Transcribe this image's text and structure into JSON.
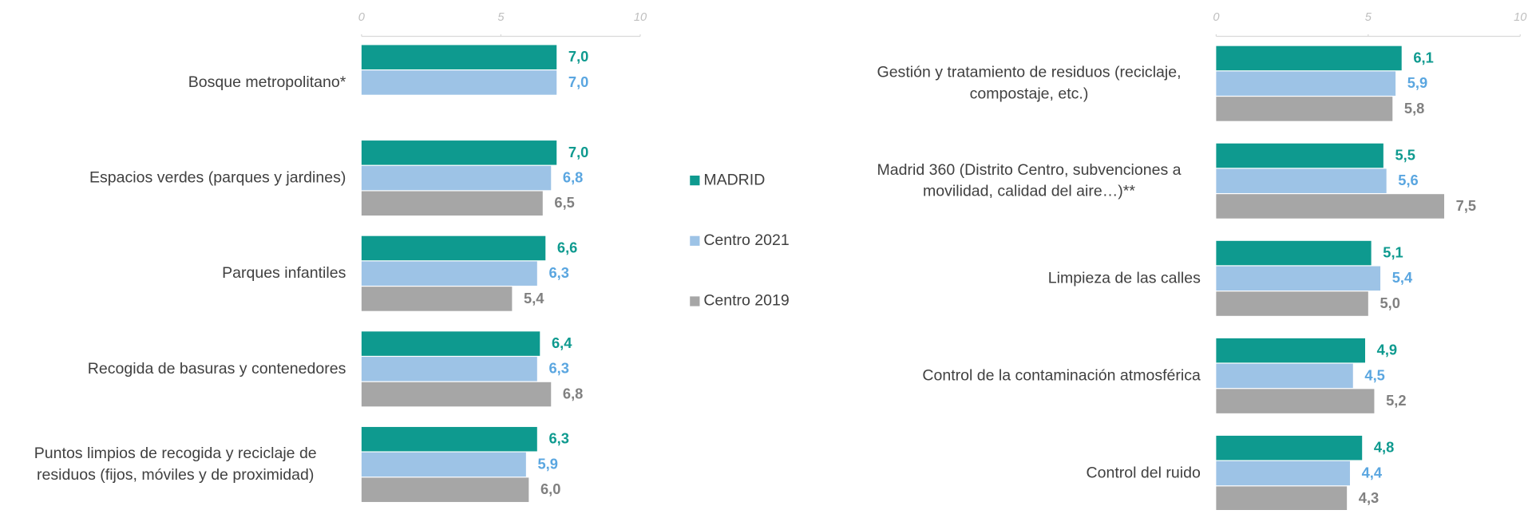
{
  "chart_data": [
    {
      "type": "barh",
      "categories": [
        "Bosque metropolitano*",
        "Espacios verdes (parques y jardines)",
        "Parques infantiles",
        "Recogida de basuras y contenedores",
        "Puntos limpios de recogida y reciclaje de residuos (fijos, móviles y de proximidad)"
      ],
      "series": [
        {
          "name": "MADRID",
          "color": "#0e9a8f",
          "label_color": "#0e9a8f",
          "values": [
            7.0,
            7.0,
            6.6,
            6.4,
            6.3
          ],
          "value_labels": [
            "7,0",
            "7,0",
            "6,6",
            "6,4",
            "6,3"
          ]
        },
        {
          "name": "Centro 2021",
          "color": "#9dc3e6",
          "label_color": "#5aa6e0",
          "values": [
            7.0,
            6.8,
            6.3,
            6.3,
            5.9
          ],
          "value_labels": [
            "7,0",
            "6,8",
            "6,3",
            "6,3",
            "5,9"
          ]
        },
        {
          "name": "Centro 2019",
          "color": "#a6a6a6",
          "label_color": "#808080",
          "values": [
            null,
            6.5,
            5.4,
            6.8,
            6.0
          ],
          "value_labels": [
            null,
            "6,5",
            "5,4",
            "6,8",
            "6,0"
          ]
        }
      ],
      "xlim": [
        0,
        10
      ],
      "xticks": [
        0,
        5,
        10
      ]
    },
    {
      "type": "barh",
      "categories": [
        "Gestión y tratamiento de residuos (reciclaje, compostaje, etc.)",
        "Madrid 360 (Distrito Centro, subvenciones a movilidad, calidad del aire…)**",
        "Limpieza de las calles",
        "Control de la contaminación atmosférica",
        "Control del ruido"
      ],
      "series": [
        {
          "color": "#0e9a8f",
          "label_color": "#0e9a8f",
          "values": [
            6.1,
            5.5,
            5.1,
            4.9,
            4.8
          ],
          "value_labels": [
            "6,1",
            "5,5",
            "5,1",
            "4,9",
            "4,8"
          ]
        },
        {
          "color": "#9dc3e6",
          "label_color": "#5aa6e0",
          "values": [
            5.9,
            5.6,
            5.4,
            4.5,
            4.4
          ],
          "value_labels": [
            "5,9",
            "5,6",
            "5,4",
            "4,5",
            "4,4"
          ]
        },
        {
          "color": "#a6a6a6",
          "label_color": "#808080",
          "values": [
            5.8,
            7.5,
            5.0,
            5.2,
            4.3
          ],
          "value_labels": [
            "5,8",
            "7,5",
            "5,0",
            "5,2",
            "4,3"
          ]
        }
      ],
      "xlim": [
        0,
        10
      ],
      "xticks": [
        0,
        5,
        10
      ]
    }
  ]
}
